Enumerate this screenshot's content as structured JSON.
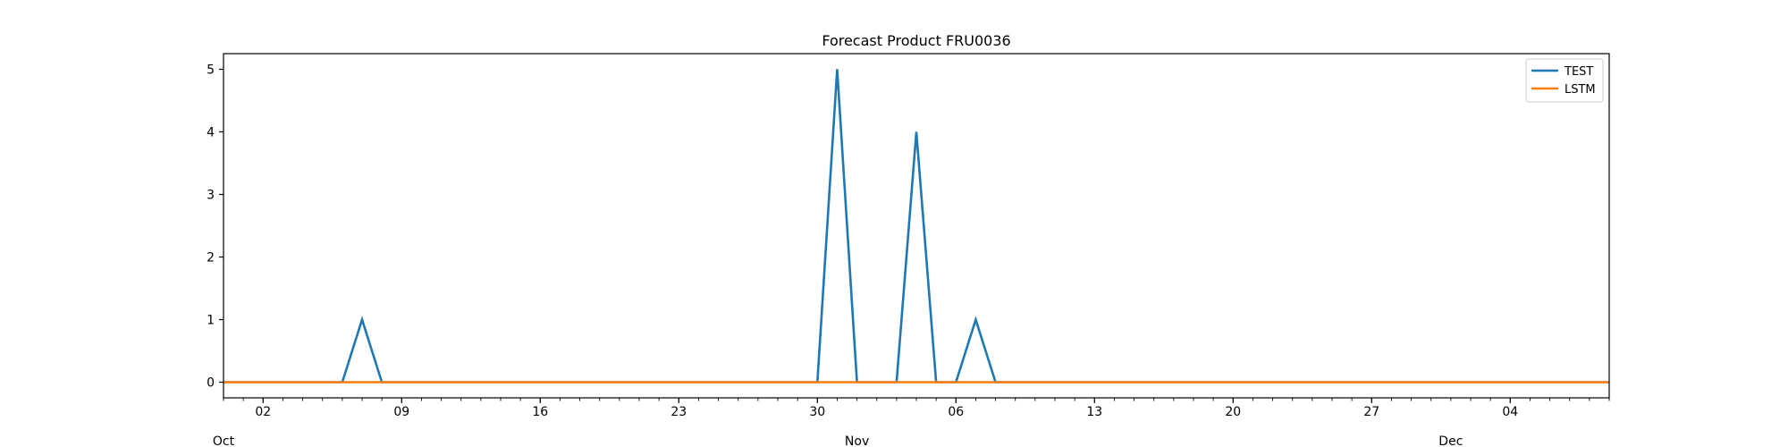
{
  "chart_data": {
    "type": "line",
    "title": "Forecast Product FRU0036",
    "xlabel": "",
    "ylabel": "",
    "x_axis_type": "date",
    "x_range": [
      "2023-09-30",
      "2023-12-09"
    ],
    "ylim": [
      -0.25,
      5.25
    ],
    "x_major_ticks": [
      {
        "date": "2023-10-02",
        "label": "02"
      },
      {
        "date": "2023-10-09",
        "label": "09"
      },
      {
        "date": "2023-10-16",
        "label": "16"
      },
      {
        "date": "2023-10-23",
        "label": "23"
      },
      {
        "date": "2023-10-30",
        "label": "30"
      },
      {
        "date": "2023-11-06",
        "label": "06"
      },
      {
        "date": "2023-11-13",
        "label": "13"
      },
      {
        "date": "2023-11-20",
        "label": "20"
      },
      {
        "date": "2023-11-27",
        "label": "27"
      },
      {
        "date": "2023-12-04",
        "label": "04"
      }
    ],
    "x_month_labels": [
      {
        "date": "2023-09-30",
        "label": "Oct"
      },
      {
        "date": "2023-11-01",
        "label": "Nov"
      },
      {
        "date": "2023-12-01",
        "label": "Dec"
      }
    ],
    "y_ticks": [
      0,
      1,
      2,
      3,
      4,
      5
    ],
    "grid": false,
    "legend_position": "top-right",
    "series": [
      {
        "name": "TEST",
        "color": "#1f77b4",
        "points": [
          {
            "x": "2023-09-30",
            "y": 0
          },
          {
            "x": "2023-10-06",
            "y": 0
          },
          {
            "x": "2023-10-07",
            "y": 1
          },
          {
            "x": "2023-10-08",
            "y": 0
          },
          {
            "x": "2023-10-30",
            "y": 0
          },
          {
            "x": "2023-10-31",
            "y": 5
          },
          {
            "x": "2023-11-01",
            "y": 0
          },
          {
            "x": "2023-11-03",
            "y": 0
          },
          {
            "x": "2023-11-04",
            "y": 4
          },
          {
            "x": "2023-11-05",
            "y": 0
          },
          {
            "x": "2023-11-06",
            "y": 0
          },
          {
            "x": "2023-11-07",
            "y": 1
          },
          {
            "x": "2023-11-08",
            "y": 0
          },
          {
            "x": "2023-12-09",
            "y": 0
          }
        ]
      },
      {
        "name": "LSTM",
        "color": "#ff7f0e",
        "points": [
          {
            "x": "2023-09-30",
            "y": 0
          },
          {
            "x": "2023-12-09",
            "y": 0
          }
        ]
      }
    ]
  }
}
